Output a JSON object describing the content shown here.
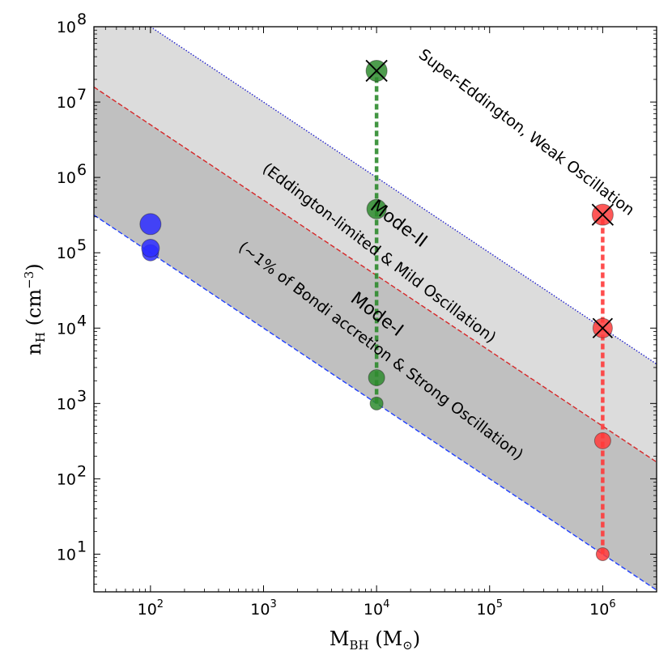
{
  "chart_data": {
    "type": "scatter",
    "x_scale": "log",
    "y_scale": "log",
    "xlim": [
      31.6,
      3000000
    ],
    "ylim": [
      3.16,
      100000000
    ],
    "xlabel": {
      "base": "M",
      "sub": "BH",
      "unit_open": " (M",
      "unit_sub": "⊙",
      "unit_close": ")"
    },
    "ylabel": {
      "base": "n",
      "sub": "H",
      "unit_open": " (cm",
      "unit_sup": "−3",
      "unit_close": ")"
    },
    "x_ticks": [
      {
        "value": 100,
        "base": "10",
        "exp": "2"
      },
      {
        "value": 1000,
        "base": "10",
        "exp": "3"
      },
      {
        "value": 10000,
        "base": "10",
        "exp": "4"
      },
      {
        "value": 100000,
        "base": "10",
        "exp": "5"
      },
      {
        "value": 1000000,
        "base": "10",
        "exp": "6"
      }
    ],
    "y_ticks": [
      {
        "value": 10,
        "base": "10",
        "exp": "1"
      },
      {
        "value": 100,
        "base": "10",
        "exp": "2"
      },
      {
        "value": 1000,
        "base": "10",
        "exp": "3"
      },
      {
        "value": 10000,
        "base": "10",
        "exp": "4"
      },
      {
        "value": 100000,
        "base": "10",
        "exp": "5"
      },
      {
        "value": 1000000,
        "base": "10",
        "exp": "6"
      },
      {
        "value": 10000000,
        "base": "10",
        "exp": "7"
      },
      {
        "value": 100000000,
        "base": "10",
        "exp": "8"
      }
    ],
    "boundaries": [
      {
        "name": "Bondi lower boundary",
        "slope": -1,
        "norm_at_1e6": 10,
        "style": "dashed",
        "color": "#1f3fff"
      },
      {
        "name": "Eddington boundary",
        "slope": -1,
        "norm_at_1e6": 500,
        "style": "dashed",
        "color": "#d62728"
      },
      {
        "name": "Super-Eddington boundary",
        "slope": -1,
        "norm_at_1e6": 10000,
        "style": "dotted",
        "color": "#2323cc"
      }
    ],
    "regions": [
      {
        "name": "Mode-I region",
        "between": [
          0,
          1
        ],
        "color": "#c0c0c0"
      },
      {
        "name": "Mode-II region",
        "between": [
          1,
          2
        ],
        "color": "#dcdcdc"
      }
    ],
    "series": [
      {
        "name": "M_BH = 1e2",
        "color": "#2b2bff",
        "points": [
          {
            "x": 100,
            "y": 100000,
            "size": 10,
            "crossed": false
          },
          {
            "x": 100,
            "y": 115000,
            "size": 11,
            "crossed": false
          },
          {
            "x": 100,
            "y": 240000,
            "size": 13,
            "crossed": false
          }
        ]
      },
      {
        "name": "M_BH = 1e4",
        "color": "#2e8b2e",
        "link_line": true,
        "points": [
          {
            "x": 10000,
            "y": 1000,
            "size": 8,
            "crossed": false
          },
          {
            "x": 10000,
            "y": 2200,
            "size": 10,
            "crossed": false
          },
          {
            "x": 10000,
            "y": 380000,
            "size": 12,
            "crossed": false
          },
          {
            "x": 10000,
            "y": 26000000,
            "size": 13,
            "crossed": true
          }
        ]
      },
      {
        "name": "M_BH = 1e6",
        "color": "#ff3b3b",
        "link_line": true,
        "points": [
          {
            "x": 1000000,
            "y": 10,
            "size": 8,
            "crossed": false
          },
          {
            "x": 1000000,
            "y": 320,
            "size": 10,
            "crossed": false
          },
          {
            "x": 1000000,
            "y": 10000,
            "size": 12,
            "crossed": true
          },
          {
            "x": 1000000,
            "y": 320000,
            "size": 13,
            "crossed": true
          }
        ]
      }
    ],
    "annotations": {
      "super_eddington": "Super-Eddington, Weak Oscillation",
      "mode2": "Mode-II",
      "eddington": "(Eddington-limited & Mild Oscillation)",
      "mode1": "Mode-I",
      "bondi": "(~1% of Bondi accretion & Strong Oscillation)"
    }
  }
}
